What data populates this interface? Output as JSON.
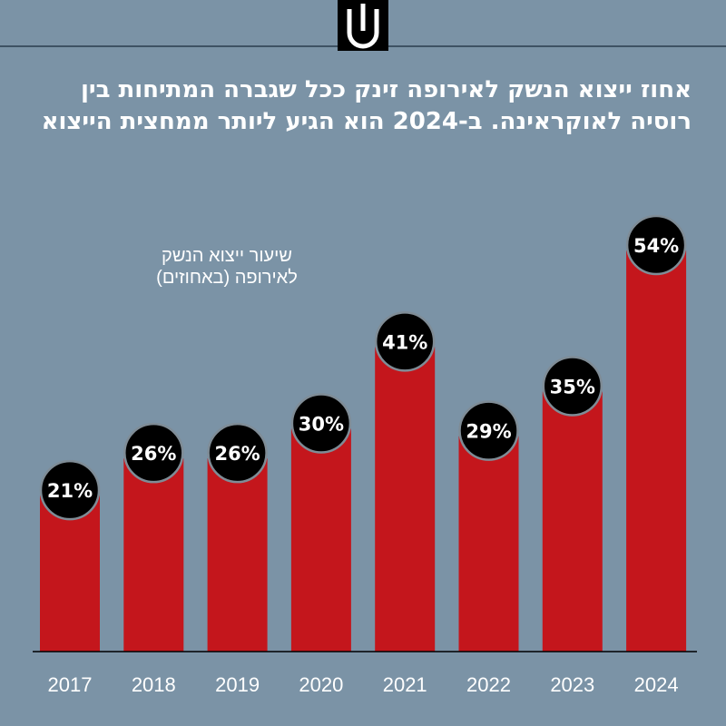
{
  "header": {
    "logo": "ynet-logo-icon"
  },
  "chart_data": {
    "type": "bar",
    "title_lines": [
      "אחוז ייצוא הנשק לאירופה זינק ככל שגברה המתיחות בין",
      "רוסיה לאוקראינה. ב-2024 הוא הגיע ליותר ממחצית הייצוא"
    ],
    "series_label_lines": [
      "שיעור ייצוא הנשק",
      "לאירופה (באחוזים)"
    ],
    "categories": [
      "2017",
      "2018",
      "2019",
      "2020",
      "2021",
      "2022",
      "2023",
      "2024"
    ],
    "values": [
      21,
      26,
      26,
      30,
      41,
      29,
      35,
      54
    ],
    "value_labels": [
      "21%",
      "26%",
      "26%",
      "30%",
      "41%",
      "29%",
      "35%",
      "54%"
    ],
    "ylim": [
      0,
      54
    ],
    "xlabel": "",
    "ylabel": "",
    "grid": false,
    "colors": {
      "bar": "#c4161c",
      "bubble": "#000000",
      "background": "#7b93a6"
    }
  }
}
